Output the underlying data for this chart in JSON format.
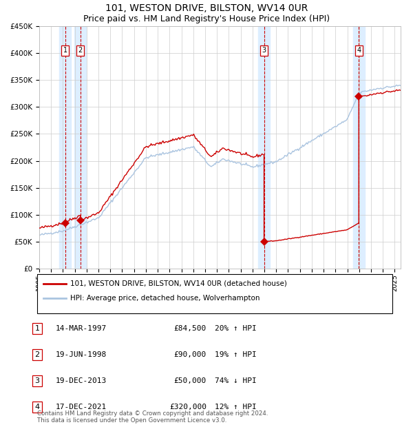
{
  "title": "101, WESTON DRIVE, BILSTON, WV14 0UR",
  "subtitle": "Price paid vs. HM Land Registry's House Price Index (HPI)",
  "legend_line1": "101, WESTON DRIVE, BILSTON, WV14 0UR (detached house)",
  "legend_line2": "HPI: Average price, detached house, Wolverhampton",
  "footer": "Contains HM Land Registry data © Crown copyright and database right 2024.\nThis data is licensed under the Open Government Licence v3.0.",
  "transactions": [
    {
      "num": 1,
      "date": "14-MAR-1997",
      "price": 84500,
      "hpi_pct": "20% ↑ HPI",
      "year": 1997.2
    },
    {
      "num": 2,
      "date": "19-JUN-1998",
      "price": 90000,
      "hpi_pct": "19% ↑ HPI",
      "year": 1998.47
    },
    {
      "num": 3,
      "date": "19-DEC-2013",
      "price": 50000,
      "hpi_pct": "74% ↓ HPI",
      "year": 2013.97
    },
    {
      "num": 4,
      "date": "17-DEC-2021",
      "price": 320000,
      "hpi_pct": "12% ↑ HPI",
      "year": 2021.97
    }
  ],
  "ylim": [
    0,
    450000
  ],
  "yticks": [
    0,
    50000,
    100000,
    150000,
    200000,
    250000,
    300000,
    350000,
    400000,
    450000
  ],
  "ytick_labels": [
    "£0",
    "£50K",
    "£100K",
    "£150K",
    "£200K",
    "£250K",
    "£300K",
    "£350K",
    "£400K",
    "£450K"
  ],
  "xlim_start": 1995.0,
  "xlim_end": 2025.5,
  "hpi_color": "#aac4e0",
  "price_color": "#cc0000",
  "dot_color": "#cc0000",
  "vline_color": "#cc0000",
  "shade_color": "#ddeeff",
  "grid_color": "#cccccc",
  "background_color": "#ffffff",
  "title_fontsize": 10,
  "subtitle_fontsize": 9
}
